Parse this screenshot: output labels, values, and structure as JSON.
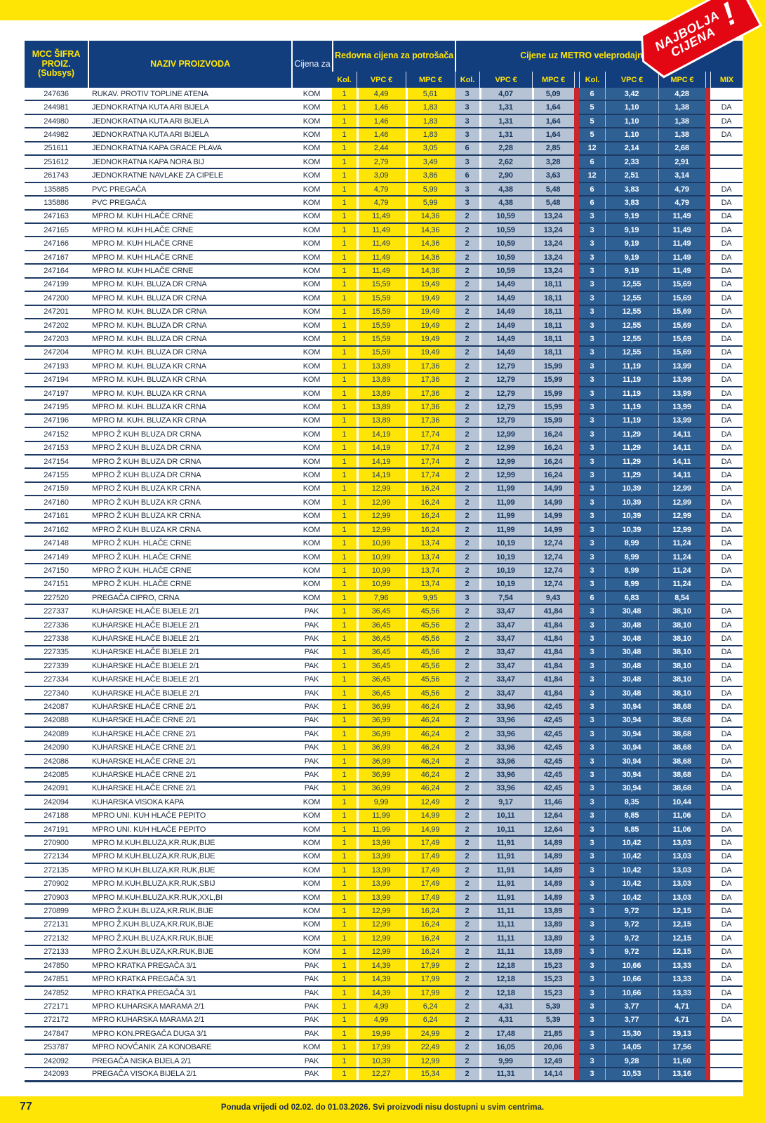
{
  "page": {
    "number": "77",
    "footer_note": "Ponuda vrijedi od 02.02. do 01.03.2026. Svi proizvodi nisu dostupni u svim centrima.",
    "badge": {
      "line1": "NAJBOLJA",
      "line2": "CIJENA",
      "exclamation": "!"
    }
  },
  "colors": {
    "frame_yellow": "#FFE505",
    "header_navy": "#123E7D",
    "regular_price_yellow": "#FFE505",
    "metro_light_blue": "#B5C3D5",
    "metro_steel_blue": "#2F6094",
    "red_bar": "#C8272E",
    "badge_red": "#E30613",
    "row_line_navy": "#1C3A64"
  },
  "table": {
    "header": {
      "col_sifra": "MCC ŠIFRA PROIZ. (Subsys)",
      "col_naziv": "NAZIV PROIZVODA",
      "col_cijena_za": "Cijena za",
      "group_regular": "Redovna cijena za potrošača",
      "group_metro": "Cijene uz METRO veleprodajnu karticu",
      "sub": [
        "Kol.",
        "VPC €",
        "MPC €",
        "Kol.",
        "VPC €",
        "MPC €",
        "Kol.",
        "VPC €",
        "MPC €",
        "MIX"
      ]
    },
    "rows": [
      [
        "247636",
        "RUKAV. PROTIV TOPLINE ATENA",
        "KOM",
        "1",
        "4,49",
        "5,61",
        "3",
        "4,07",
        "5,09",
        "6",
        "3,42",
        "4,28",
        ""
      ],
      [
        "244981",
        "JEDNOKRATNA KUTA ARI BIJELA",
        "KOM",
        "1",
        "1,46",
        "1,83",
        "3",
        "1,31",
        "1,64",
        "5",
        "1,10",
        "1,38",
        "DA"
      ],
      [
        "244980",
        "JEDNOKRATNA KUTA ARI BIJELA",
        "KOM",
        "1",
        "1,46",
        "1,83",
        "3",
        "1,31",
        "1,64",
        "5",
        "1,10",
        "1,38",
        "DA"
      ],
      [
        "244982",
        "JEDNOKRATNA KUTA ARI BIJELA",
        "KOM",
        "1",
        "1,46",
        "1,83",
        "3",
        "1,31",
        "1,64",
        "5",
        "1,10",
        "1,38",
        "DA"
      ],
      [
        "251611",
        "JEDNOKRATNA KAPA GRACE PLAVA",
        "KOM",
        "1",
        "2,44",
        "3,05",
        "6",
        "2,28",
        "2,85",
        "12",
        "2,14",
        "2,68",
        ""
      ],
      [
        "251612",
        "JEDNOKRATNA KAPA NORA BIJ",
        "KOM",
        "1",
        "2,79",
        "3,49",
        "3",
        "2,62",
        "3,28",
        "6",
        "2,33",
        "2,91",
        ""
      ],
      [
        "261743",
        "JEDNOKRATNE NAVLAKE ZA CIPELE",
        "KOM",
        "1",
        "3,09",
        "3,86",
        "6",
        "2,90",
        "3,63",
        "12",
        "2,51",
        "3,14",
        ""
      ],
      [
        "135885",
        "PVC PREGAČA",
        "KOM",
        "1",
        "4,79",
        "5,99",
        "3",
        "4,38",
        "5,48",
        "6",
        "3,83",
        "4,79",
        "DA"
      ],
      [
        "135886",
        "PVC PREGAČA",
        "KOM",
        "1",
        "4,79",
        "5,99",
        "3",
        "4,38",
        "5,48",
        "6",
        "3,83",
        "4,79",
        "DA"
      ],
      [
        "247163",
        "MPRO M. KUH HLAČE CRNE",
        "KOM",
        "1",
        "11,49",
        "14,36",
        "2",
        "10,59",
        "13,24",
        "3",
        "9,19",
        "11,49",
        "DA"
      ],
      [
        "247165",
        "MPRO M. KUH HLAČE CRNE",
        "KOM",
        "1",
        "11,49",
        "14,36",
        "2",
        "10,59",
        "13,24",
        "3",
        "9,19",
        "11,49",
        "DA"
      ],
      [
        "247166",
        "MPRO M. KUH HLAČE CRNE",
        "KOM",
        "1",
        "11,49",
        "14,36",
        "2",
        "10,59",
        "13,24",
        "3",
        "9,19",
        "11,49",
        "DA"
      ],
      [
        "247167",
        "MPRO M. KUH HLAČE CRNE",
        "KOM",
        "1",
        "11,49",
        "14,36",
        "2",
        "10,59",
        "13,24",
        "3",
        "9,19",
        "11,49",
        "DA"
      ],
      [
        "247164",
        "MPRO M. KUH HLAČE CRNE",
        "KOM",
        "1",
        "11,49",
        "14,36",
        "2",
        "10,59",
        "13,24",
        "3",
        "9,19",
        "11,49",
        "DA"
      ],
      [
        "247199",
        "MPRO M. KUH. BLUZA DR CRNA",
        "KOM",
        "1",
        "15,59",
        "19,49",
        "2",
        "14,49",
        "18,11",
        "3",
        "12,55",
        "15,69",
        "DA"
      ],
      [
        "247200",
        "MPRO M. KUH. BLUZA DR CRNA",
        "KOM",
        "1",
        "15,59",
        "19,49",
        "2",
        "14,49",
        "18,11",
        "3",
        "12,55",
        "15,69",
        "DA"
      ],
      [
        "247201",
        "MPRO M. KUH. BLUZA DR CRNA",
        "KOM",
        "1",
        "15,59",
        "19,49",
        "2",
        "14,49",
        "18,11",
        "3",
        "12,55",
        "15,69",
        "DA"
      ],
      [
        "247202",
        "MPRO M. KUH. BLUZA DR CRNA",
        "KOM",
        "1",
        "15,59",
        "19,49",
        "2",
        "14,49",
        "18,11",
        "3",
        "12,55",
        "15,69",
        "DA"
      ],
      [
        "247203",
        "MPRO M. KUH. BLUZA DR CRNA",
        "KOM",
        "1",
        "15,59",
        "19,49",
        "2",
        "14,49",
        "18,11",
        "3",
        "12,55",
        "15,69",
        "DA"
      ],
      [
        "247204",
        "MPRO M. KUH. BLUZA DR CRNA",
        "KOM",
        "1",
        "15,59",
        "19,49",
        "2",
        "14,49",
        "18,11",
        "3",
        "12,55",
        "15,69",
        "DA"
      ],
      [
        "247193",
        "MPRO M. KUH. BLUZA KR CRNA",
        "KOM",
        "1",
        "13,89",
        "17,36",
        "2",
        "12,79",
        "15,99",
        "3",
        "11,19",
        "13,99",
        "DA"
      ],
      [
        "247194",
        "MPRO M. KUH. BLUZA KR CRNA",
        "KOM",
        "1",
        "13,89",
        "17,36",
        "2",
        "12,79",
        "15,99",
        "3",
        "11,19",
        "13,99",
        "DA"
      ],
      [
        "247197",
        "MPRO M. KUH. BLUZA KR CRNA",
        "KOM",
        "1",
        "13,89",
        "17,36",
        "2",
        "12,79",
        "15,99",
        "3",
        "11,19",
        "13,99",
        "DA"
      ],
      [
        "247195",
        "MPRO M. KUH. BLUZA KR CRNA",
        "KOM",
        "1",
        "13,89",
        "17,36",
        "2",
        "12,79",
        "15,99",
        "3",
        "11,19",
        "13,99",
        "DA"
      ],
      [
        "247196",
        "MPRO M. KUH. BLUZA KR CRNA",
        "KOM",
        "1",
        "13,89",
        "17,36",
        "2",
        "12,79",
        "15,99",
        "3",
        "11,19",
        "13,99",
        "DA"
      ],
      [
        "247152",
        "MPRO Ž KUH BLUZA DR CRNA",
        "KOM",
        "1",
        "14,19",
        "17,74",
        "2",
        "12,99",
        "16,24",
        "3",
        "11,29",
        "14,11",
        "DA"
      ],
      [
        "247153",
        "MPRO Ž KUH BLUZA DR CRNA",
        "KOM",
        "1",
        "14,19",
        "17,74",
        "2",
        "12,99",
        "16,24",
        "3",
        "11,29",
        "14,11",
        "DA"
      ],
      [
        "247154",
        "MPRO Ž KUH BLUZA DR CRNA",
        "KOM",
        "1",
        "14,19",
        "17,74",
        "2",
        "12,99",
        "16,24",
        "3",
        "11,29",
        "14,11",
        "DA"
      ],
      [
        "247155",
        "MPRO Ž KUH BLUZA DR CRNA",
        "KOM",
        "1",
        "14,19",
        "17,74",
        "2",
        "12,99",
        "16,24",
        "3",
        "11,29",
        "14,11",
        "DA"
      ],
      [
        "247159",
        "MPRO Ž KUH BLUZA KR CRNA",
        "KOM",
        "1",
        "12,99",
        "16,24",
        "2",
        "11,99",
        "14,99",
        "3",
        "10,39",
        "12,99",
        "DA"
      ],
      [
        "247160",
        "MPRO Ž KUH BLUZA KR CRNA",
        "KOM",
        "1",
        "12,99",
        "16,24",
        "2",
        "11,99",
        "14,99",
        "3",
        "10,39",
        "12,99",
        "DA"
      ],
      [
        "247161",
        "MPRO Ž KUH BLUZA KR CRNA",
        "KOM",
        "1",
        "12,99",
        "16,24",
        "2",
        "11,99",
        "14,99",
        "3",
        "10,39",
        "12,99",
        "DA"
      ],
      [
        "247162",
        "MPRO Ž KUH BLUZA KR CRNA",
        "KOM",
        "1",
        "12,99",
        "16,24",
        "2",
        "11,99",
        "14,99",
        "3",
        "10,39",
        "12,99",
        "DA"
      ],
      [
        "247148",
        "MPRO Ž KUH. HLAČE CRNE",
        "KOM",
        "1",
        "10,99",
        "13,74",
        "2",
        "10,19",
        "12,74",
        "3",
        "8,99",
        "11,24",
        "DA"
      ],
      [
        "247149",
        "MPRO Ž KUH. HLAČE CRNE",
        "KOM",
        "1",
        "10,99",
        "13,74",
        "2",
        "10,19",
        "12,74",
        "3",
        "8,99",
        "11,24",
        "DA"
      ],
      [
        "247150",
        "MPRO Ž KUH. HLAČE CRNE",
        "KOM",
        "1",
        "10,99",
        "13,74",
        "2",
        "10,19",
        "12,74",
        "3",
        "8,99",
        "11,24",
        "DA"
      ],
      [
        "247151",
        "MPRO Ž KUH. HLAČE CRNE",
        "KOM",
        "1",
        "10,99",
        "13,74",
        "2",
        "10,19",
        "12,74",
        "3",
        "8,99",
        "11,24",
        "DA"
      ],
      [
        "227520",
        "PREGAČA CIPRO, CRNA",
        "KOM",
        "1",
        "7,96",
        "9,95",
        "3",
        "7,54",
        "9,43",
        "6",
        "6,83",
        "8,54",
        ""
      ],
      [
        "227337",
        "KUHARSKE HLAČE BIJELE 2/1",
        "PAK",
        "1",
        "36,45",
        "45,56",
        "2",
        "33,47",
        "41,84",
        "3",
        "30,48",
        "38,10",
        "DA"
      ],
      [
        "227336",
        "KUHARSKE HLAČE BIJELE 2/1",
        "PAK",
        "1",
        "36,45",
        "45,56",
        "2",
        "33,47",
        "41,84",
        "3",
        "30,48",
        "38,10",
        "DA"
      ],
      [
        "227338",
        "KUHARSKE HLAČE BIJELE 2/1",
        "PAK",
        "1",
        "36,45",
        "45,56",
        "2",
        "33,47",
        "41,84",
        "3",
        "30,48",
        "38,10",
        "DA"
      ],
      [
        "227335",
        "KUHARSKE HLAČE BIJELE 2/1",
        "PAK",
        "1",
        "36,45",
        "45,56",
        "2",
        "33,47",
        "41,84",
        "3",
        "30,48",
        "38,10",
        "DA"
      ],
      [
        "227339",
        "KUHARSKE HLAČE BIJELE 2/1",
        "PAK",
        "1",
        "36,45",
        "45,56",
        "2",
        "33,47",
        "41,84",
        "3",
        "30,48",
        "38,10",
        "DA"
      ],
      [
        "227334",
        "KUHARSKE HLAČE BIJELE 2/1",
        "PAK",
        "1",
        "36,45",
        "45,56",
        "2",
        "33,47",
        "41,84",
        "3",
        "30,48",
        "38,10",
        "DA"
      ],
      [
        "227340",
        "KUHARSKE HLAČE BIJELE 2/1",
        "PAK",
        "1",
        "36,45",
        "45,56",
        "2",
        "33,47",
        "41,84",
        "3",
        "30,48",
        "38,10",
        "DA"
      ],
      [
        "242087",
        "KUHARSKE HLAČE CRNE 2/1",
        "PAK",
        "1",
        "36,99",
        "46,24",
        "2",
        "33,96",
        "42,45",
        "3",
        "30,94",
        "38,68",
        "DA"
      ],
      [
        "242088",
        "KUHARSKE HLAČE CRNE 2/1",
        "PAK",
        "1",
        "36,99",
        "46,24",
        "2",
        "33,96",
        "42,45",
        "3",
        "30,94",
        "38,68",
        "DA"
      ],
      [
        "242089",
        "KUHARSKE HLAČE CRNE 2/1",
        "PAK",
        "1",
        "36,99",
        "46,24",
        "2",
        "33,96",
        "42,45",
        "3",
        "30,94",
        "38,68",
        "DA"
      ],
      [
        "242090",
        "KUHARSKE HLAČE CRNE 2/1",
        "PAK",
        "1",
        "36,99",
        "46,24",
        "2",
        "33,96",
        "42,45",
        "3",
        "30,94",
        "38,68",
        "DA"
      ],
      [
        "242086",
        "KUHARSKE HLAČE CRNE 2/1",
        "PAK",
        "1",
        "36,99",
        "46,24",
        "2",
        "33,96",
        "42,45",
        "3",
        "30,94",
        "38,68",
        "DA"
      ],
      [
        "242085",
        "KUHARSKE HLAČE CRNE 2/1",
        "PAK",
        "1",
        "36,99",
        "46,24",
        "2",
        "33,96",
        "42,45",
        "3",
        "30,94",
        "38,68",
        "DA"
      ],
      [
        "242091",
        "KUHARSKE HLAČE CRNE 2/1",
        "PAK",
        "1",
        "36,99",
        "46,24",
        "2",
        "33,96",
        "42,45",
        "3",
        "30,94",
        "38,68",
        "DA"
      ],
      [
        "242094",
        "KUHARSKA VISOKA KAPA",
        "KOM",
        "1",
        "9,99",
        "12,49",
        "2",
        "9,17",
        "11,46",
        "3",
        "8,35",
        "10,44",
        ""
      ],
      [
        "247188",
        "MPRO UNI. KUH HLAČE PEPITO",
        "KOM",
        "1",
        "11,99",
        "14,99",
        "2",
        "10,11",
        "12,64",
        "3",
        "8,85",
        "11,06",
        "DA"
      ],
      [
        "247191",
        "MPRO UNI. KUH HLAČE PEPITO",
        "KOM",
        "1",
        "11,99",
        "14,99",
        "2",
        "10,11",
        "12,64",
        "3",
        "8,85",
        "11,06",
        "DA"
      ],
      [
        "270900",
        "MPRO M.KUH.BLUZA,KR.RUK,BIJE",
        "KOM",
        "1",
        "13,99",
        "17,49",
        "2",
        "11,91",
        "14,89",
        "3",
        "10,42",
        "13,03",
        "DA"
      ],
      [
        "272134",
        "MPRO M.KUH.BLUZA,KR.RUK,BIJE",
        "KOM",
        "1",
        "13,99",
        "17,49",
        "2",
        "11,91",
        "14,89",
        "3",
        "10,42",
        "13,03",
        "DA"
      ],
      [
        "272135",
        "MPRO M.KUH.BLUZA,KR.RUK,BIJE",
        "KOM",
        "1",
        "13,99",
        "17,49",
        "2",
        "11,91",
        "14,89",
        "3",
        "10,42",
        "13,03",
        "DA"
      ],
      [
        "270902",
        "MPRO M.KUH.BLUZA,KR.RUK,SBIJ",
        "KOM",
        "1",
        "13,99",
        "17,49",
        "2",
        "11,91",
        "14,89",
        "3",
        "10,42",
        "13,03",
        "DA"
      ],
      [
        "270903",
        "MPRO M.KUH.BLUZA,KR.RUK,XXL,BI",
        "KOM",
        "1",
        "13,99",
        "17,49",
        "2",
        "11,91",
        "14,89",
        "3",
        "10,42",
        "13,03",
        "DA"
      ],
      [
        "270899",
        "MPRO Ž.KUH.BLUZA,KR.RUK,BIJE",
        "KOM",
        "1",
        "12,99",
        "16,24",
        "2",
        "11,11",
        "13,89",
        "3",
        "9,72",
        "12,15",
        "DA"
      ],
      [
        "272131",
        "MPRO Ž.KUH.BLUZA,KR.RUK,BIJE",
        "KOM",
        "1",
        "12,99",
        "16,24",
        "2",
        "11,11",
        "13,89",
        "3",
        "9,72",
        "12,15",
        "DA"
      ],
      [
        "272132",
        "MPRO Ž.KUH.BLUZA,KR.RUK,BIJE",
        "KOM",
        "1",
        "12,99",
        "16,24",
        "2",
        "11,11",
        "13,89",
        "3",
        "9,72",
        "12,15",
        "DA"
      ],
      [
        "272133",
        "MPRO Ž.KUH.BLUZA,KR.RUK,BIJE",
        "KOM",
        "1",
        "12,99",
        "16,24",
        "2",
        "11,11",
        "13,89",
        "3",
        "9,72",
        "12,15",
        "DA"
      ],
      [
        "247850",
        "MPRO KRATKA PREGAČA 3/1",
        "PAK",
        "1",
        "14,39",
        "17,99",
        "2",
        "12,18",
        "15,23",
        "3",
        "10,66",
        "13,33",
        "DA"
      ],
      [
        "247851",
        "MPRO KRATKA PREGAČA 3/1",
        "PAK",
        "1",
        "14,39",
        "17,99",
        "2",
        "12,18",
        "15,23",
        "3",
        "10,66",
        "13,33",
        "DA"
      ],
      [
        "247852",
        "MPRO KRATKA PREGAČA 3/1",
        "PAK",
        "1",
        "14,39",
        "17,99",
        "2",
        "12,18",
        "15,23",
        "3",
        "10,66",
        "13,33",
        "DA"
      ],
      [
        "272171",
        "MPRO KUHARSKA MARAMA 2/1",
        "PAK",
        "1",
        "4,99",
        "6,24",
        "2",
        "4,31",
        "5,39",
        "3",
        "3,77",
        "4,71",
        "DA"
      ],
      [
        "272172",
        "MPRO KUHARSKA MARAMA 2/1",
        "PAK",
        "1",
        "4,99",
        "6,24",
        "2",
        "4,31",
        "5,39",
        "3",
        "3,77",
        "4,71",
        "DA"
      ],
      [
        "247847",
        "MPRO KON.PREGAČA DUGA 3/1",
        "PAK",
        "1",
        "19,99",
        "24,99",
        "2",
        "17,48",
        "21,85",
        "3",
        "15,30",
        "19,13",
        ""
      ],
      [
        "253787",
        "MPRO NOVČANIK ZA KONOBARE",
        "KOM",
        "1",
        "17,99",
        "22,49",
        "2",
        "16,05",
        "20,06",
        "3",
        "14,05",
        "17,56",
        ""
      ],
      [
        "242092",
        "PREGAČA NISKA BIJELA 2/1",
        "PAK",
        "1",
        "10,39",
        "12,99",
        "2",
        "9,99",
        "12,49",
        "3",
        "9,28",
        "11,60",
        ""
      ],
      [
        "242093",
        "PREGAČA VISOKA BIJELA 2/1",
        "PAK",
        "1",
        "12,27",
        "15,34",
        "2",
        "11,31",
        "14,14",
        "3",
        "10,53",
        "13,16",
        ""
      ]
    ]
  }
}
